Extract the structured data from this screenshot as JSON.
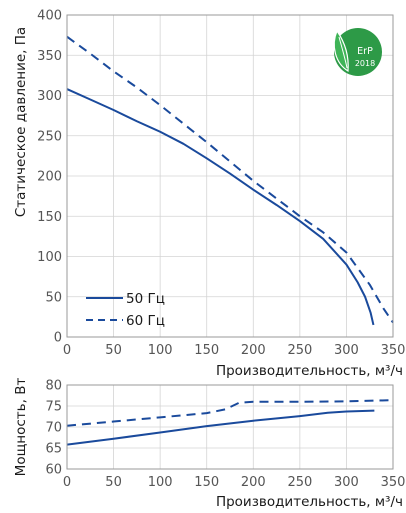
{
  "chart_data": [
    {
      "type": "line",
      "title": "",
      "xlabel": "Производительность, м³/ч",
      "ylabel": "Статическое давление, Па",
      "xlim": [
        0,
        350
      ],
      "ylim": [
        0,
        400
      ],
      "xticks": [
        0,
        50,
        100,
        150,
        200,
        250,
        300,
        350
      ],
      "yticks": [
        0,
        50,
        100,
        150,
        200,
        250,
        300,
        350,
        400
      ],
      "grid": true,
      "legend_position": "bottom-left",
      "series": [
        {
          "name": "50 Гц",
          "style": "solid",
          "color": "#1a4a9c",
          "points": [
            [
              0,
              308
            ],
            [
              25,
              295
            ],
            [
              50,
              282
            ],
            [
              75,
              268
            ],
            [
              100,
              255
            ],
            [
              125,
              240
            ],
            [
              150,
              222
            ],
            [
              175,
              203
            ],
            [
              200,
              183
            ],
            [
              225,
              164
            ],
            [
              250,
              144
            ],
            [
              275,
              122
            ],
            [
              300,
              90
            ],
            [
              312,
              68
            ],
            [
              320,
              50
            ],
            [
              326,
              30
            ],
            [
              329,
              15
            ]
          ]
        },
        {
          "name": "60 Гц",
          "style": "dashed",
          "color": "#1a4a9c",
          "points": [
            [
              0,
              373
            ],
            [
              25,
              352
            ],
            [
              50,
              330
            ],
            [
              75,
              310
            ],
            [
              100,
              288
            ],
            [
              125,
              265
            ],
            [
              150,
              242
            ],
            [
              175,
              218
            ],
            [
              200,
              194
            ],
            [
              225,
              172
            ],
            [
              250,
              150
            ],
            [
              275,
              130
            ],
            [
              300,
              105
            ],
            [
              325,
              65
            ],
            [
              340,
              35
            ],
            [
              350,
              18
            ]
          ]
        }
      ]
    },
    {
      "type": "line",
      "title": "",
      "xlabel": "Производительность, м³/ч",
      "ylabel": "Мощность, Вт",
      "xlim": [
        0,
        350
      ],
      "ylim": [
        60,
        80
      ],
      "xticks": [
        0,
        50,
        100,
        150,
        200,
        250,
        300,
        350
      ],
      "yticks": [
        60,
        65,
        70,
        75,
        80
      ],
      "grid": true,
      "series": [
        {
          "name": "50 Гц",
          "style": "solid",
          "color": "#1a4a9c",
          "points": [
            [
              0,
              65.8
            ],
            [
              50,
              67.2
            ],
            [
              100,
              68.7
            ],
            [
              150,
              70.2
            ],
            [
              200,
              71.5
            ],
            [
              250,
              72.6
            ],
            [
              280,
              73.4
            ],
            [
              300,
              73.7
            ],
            [
              330,
              73.9
            ]
          ]
        },
        {
          "name": "60 Гц",
          "style": "dashed",
          "color": "#1a4a9c",
          "points": [
            [
              0,
              70.3
            ],
            [
              50,
              71.3
            ],
            [
              100,
              72.3
            ],
            [
              150,
              73.3
            ],
            [
              170,
              74.2
            ],
            [
              185,
              75.8
            ],
            [
              200,
              76.0
            ],
            [
              250,
              76.0
            ],
            [
              300,
              76.1
            ],
            [
              350,
              76.4
            ]
          ]
        }
      ]
    }
  ],
  "badge": {
    "text": "ErP",
    "year": "2018",
    "color": "#2d9a47",
    "icon": "leaf-icon"
  }
}
